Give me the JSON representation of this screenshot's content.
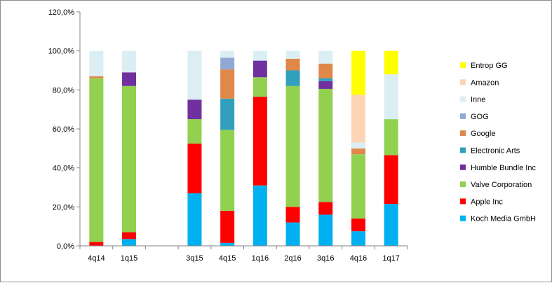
{
  "chart_data": {
    "type": "bar",
    "stacked": true,
    "categories": [
      "4q14",
      "1q15",
      "",
      "3q15",
      "4q15",
      "1q16",
      "2q16",
      "3q16",
      "4q16",
      "1q17"
    ],
    "ylim": [
      0,
      120
    ],
    "yticks": [
      "0,0%",
      "20,0%",
      "40,0%",
      "60,0%",
      "80,0%",
      "100,0%",
      "120,0%"
    ],
    "ytick_values": [
      0,
      20,
      40,
      60,
      80,
      100,
      120
    ],
    "grid": false,
    "legend_position": "right",
    "series": [
      {
        "name": "Koch Media GmbH",
        "color": "#00b0f0",
        "values": [
          0.0,
          3.5,
          0,
          27.0,
          1.5,
          31.0,
          12.0,
          16.0,
          7.5,
          21.5
        ]
      },
      {
        "name": "Apple Inc",
        "color": "#ff0000",
        "values": [
          2.0,
          3.5,
          0,
          25.5,
          16.5,
          45.5,
          8.0,
          6.5,
          6.5,
          25.0
        ]
      },
      {
        "name": "Valve Corporation",
        "color": "#92d050",
        "values": [
          84.0,
          75.0,
          0,
          12.5,
          41.5,
          10.0,
          62.0,
          58.0,
          33.0,
          18.5
        ]
      },
      {
        "name": "Humble Bundle Inc",
        "color": "#7030a0",
        "values": [
          0.0,
          7.0,
          0,
          10.0,
          0.0,
          8.5,
          0.0,
          4.0,
          0.0,
          0.0
        ]
      },
      {
        "name": "Electronic Arts",
        "color": "#31a0bc",
        "values": [
          0.0,
          0.0,
          0,
          0.0,
          16.0,
          0.0,
          8.0,
          1.5,
          0.0,
          0.0
        ]
      },
      {
        "name": "Google",
        "color": "#e0874a",
        "values": [
          1.0,
          0.0,
          0,
          0.0,
          15.0,
          0.0,
          6.0,
          7.5,
          3.0,
          0.0
        ]
      },
      {
        "name": "GOG",
        "color": "#8fa9d4",
        "values": [
          0.0,
          0.0,
          0,
          0.0,
          6.0,
          0.0,
          0.0,
          0.0,
          0.0,
          0.0
        ]
      },
      {
        "name": "Inne",
        "color": "#dbeef4",
        "values": [
          13.0,
          11.0,
          0,
          25.0,
          3.5,
          5.0,
          4.0,
          6.5,
          3.0,
          23.0
        ]
      },
      {
        "name": "Amazon",
        "color": "#fbd5b5",
        "values": [
          0.0,
          0.0,
          0,
          0.0,
          0.0,
          0.0,
          0.0,
          0.0,
          24.5,
          0.0
        ]
      },
      {
        "name": "Entrop GG",
        "color": "#ffff00",
        "values": [
          0.0,
          0.0,
          0,
          0.0,
          0.0,
          0.0,
          0.0,
          0.0,
          22.5,
          12.0
        ]
      }
    ]
  }
}
